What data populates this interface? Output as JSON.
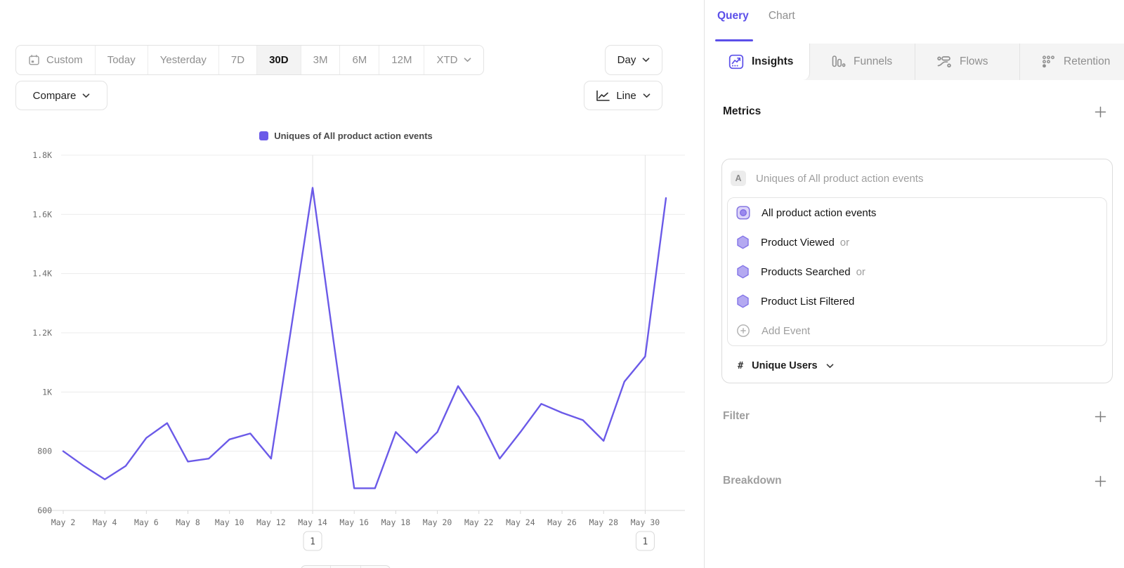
{
  "toolbar": {
    "date_ranges": [
      {
        "label": "Custom",
        "icon": "calendar-icon",
        "active": false
      },
      {
        "label": "Today",
        "active": false
      },
      {
        "label": "Yesterday",
        "active": false
      },
      {
        "label": "7D",
        "active": false
      },
      {
        "label": "30D",
        "active": true
      },
      {
        "label": "3M",
        "active": false
      },
      {
        "label": "6M",
        "active": false
      },
      {
        "label": "12M",
        "active": false
      },
      {
        "label": "XTD",
        "active": false,
        "dropdown": true
      }
    ],
    "granularity": {
      "label": "Day"
    },
    "compare": {
      "label": "Compare"
    },
    "chart_type": {
      "label": "Line",
      "icon": "line-chart-icon"
    }
  },
  "chart_data": {
    "type": "line",
    "title": "Uniques of All product action events",
    "legend": [
      {
        "label": "Uniques of All product action events",
        "color": "#6B5AE8"
      }
    ],
    "x": [
      "May 2",
      "May 3",
      "May 4",
      "May 5",
      "May 6",
      "May 7",
      "May 8",
      "May 9",
      "May 10",
      "May 11",
      "May 12",
      "May 13",
      "May 14",
      "May 15",
      "May 16",
      "May 17",
      "May 18",
      "May 19",
      "May 20",
      "May 21",
      "May 22",
      "May 23",
      "May 24",
      "May 25",
      "May 26",
      "May 27",
      "May 28",
      "May 29",
      "May 30",
      "May 31"
    ],
    "series": [
      {
        "name": "Uniques of All product action events",
        "color": "#6B5AE8",
        "values": [
          800,
          750,
          705,
          750,
          845,
          895,
          765,
          775,
          840,
          860,
          775,
          1230,
          1690,
          1175,
          675,
          675,
          865,
          795,
          865,
          1020,
          915,
          775,
          865,
          960,
          930,
          905,
          835,
          1035,
          1120,
          1655
        ]
      }
    ],
    "ylim": [
      600,
      1800
    ],
    "ytick_values": [
      600,
      800,
      1000,
      1200,
      1400,
      1600,
      1800
    ],
    "ytick_labels": [
      "600",
      "800",
      "1K",
      "1.2K",
      "1.4K",
      "1.6K",
      "1.8K"
    ],
    "x_tick_every": 2,
    "grid": "horizontal",
    "legend_position": "top-center",
    "annotations": [
      {
        "x": "May 14",
        "label": "1"
      },
      {
        "x": "May 30",
        "label": "1"
      }
    ]
  },
  "query_panel": {
    "tabs": [
      {
        "label": "Query",
        "active": true
      },
      {
        "label": "Chart",
        "active": false
      }
    ],
    "report_tabs": [
      {
        "label": "Insights",
        "icon": "insights-icon",
        "active": true
      },
      {
        "label": "Funnels",
        "icon": "funnels-icon",
        "active": false
      },
      {
        "label": "Flows",
        "icon": "flows-icon",
        "active": false
      },
      {
        "label": "Retention",
        "icon": "retention-icon",
        "active": false
      }
    ],
    "metrics": {
      "title": "Metrics",
      "group_badge": "A",
      "group_label": "Uniques of All product action events",
      "events": [
        {
          "name": "All product action events",
          "suffix": "",
          "icon": "custom-event-icon"
        },
        {
          "name": "Product Viewed",
          "suffix": "or",
          "icon": "event-hexagon-icon"
        },
        {
          "name": "Products Searched",
          "suffix": "or",
          "icon": "event-hexagon-icon"
        },
        {
          "name": "Product List Filtered",
          "suffix": "",
          "icon": "event-hexagon-icon"
        }
      ],
      "add_event_label": "Add Event",
      "aggregation": {
        "symbol": "#",
        "label": "Unique Users"
      }
    },
    "sections": [
      {
        "title": "Filter"
      },
      {
        "title": "Breakdown"
      }
    ]
  },
  "colors": {
    "accent": "#5B4FE9",
    "line": "#6B5AE8",
    "grid": "#ececec",
    "axis_text": "#6e6e6e"
  }
}
